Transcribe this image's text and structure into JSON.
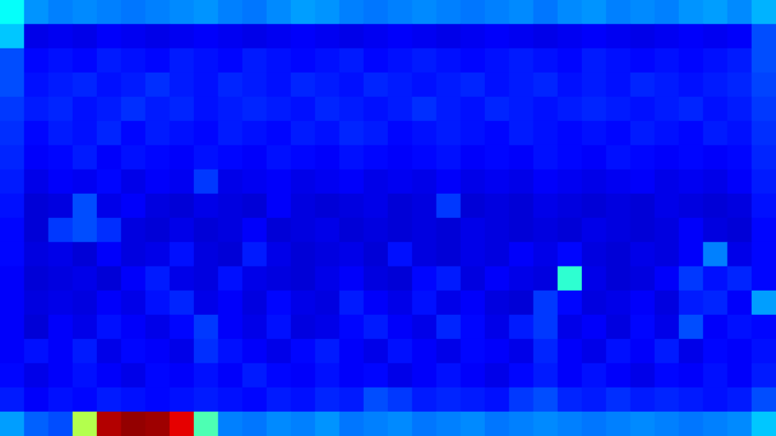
{
  "chart_data": {
    "type": "heatmap",
    "tick_labels": false,
    "grid": false,
    "color_range": [
      0,
      1
    ],
    "cells": [
      [
        0.38,
        0.27,
        0.25,
        0.26,
        0.25,
        0.24,
        0.25,
        0.26,
        0.27,
        0.25,
        0.24,
        0.26,
        0.28,
        0.27,
        0.25,
        0.24,
        0.25,
        0.26,
        0.25,
        0.24,
        0.25,
        0.26,
        0.24,
        0.26,
        0.27,
        0.25,
        0.26,
        0.25,
        0.27,
        0.28,
        0.26,
        0.3
      ],
      [
        0.32,
        0.1,
        0.11,
        0.1,
        0.12,
        0.11,
        0.1,
        0.11,
        0.12,
        0.11,
        0.1,
        0.11,
        0.12,
        0.11,
        0.1,
        0.11,
        0.12,
        0.11,
        0.1,
        0.11,
        0.12,
        0.11,
        0.1,
        0.11,
        0.12,
        0.11,
        0.1,
        0.11,
        0.12,
        0.11,
        0.12,
        0.2
      ],
      [
        0.2,
        0.13,
        0.14,
        0.13,
        0.15,
        0.14,
        0.13,
        0.15,
        0.14,
        0.13,
        0.15,
        0.14,
        0.13,
        0.14,
        0.15,
        0.13,
        0.14,
        0.15,
        0.14,
        0.13,
        0.14,
        0.15,
        0.14,
        0.13,
        0.15,
        0.14,
        0.13,
        0.14,
        0.13,
        0.14,
        0.15,
        0.2
      ],
      [
        0.2,
        0.14,
        0.15,
        0.16,
        0.14,
        0.15,
        0.17,
        0.15,
        0.14,
        0.16,
        0.15,
        0.14,
        0.16,
        0.15,
        0.14,
        0.16,
        0.15,
        0.14,
        0.15,
        0.16,
        0.14,
        0.15,
        0.16,
        0.14,
        0.15,
        0.14,
        0.16,
        0.15,
        0.14,
        0.15,
        0.16,
        0.19
      ],
      [
        0.18,
        0.15,
        0.16,
        0.14,
        0.15,
        0.17,
        0.15,
        0.16,
        0.14,
        0.15,
        0.16,
        0.15,
        0.14,
        0.16,
        0.15,
        0.14,
        0.15,
        0.17,
        0.15,
        0.14,
        0.16,
        0.15,
        0.14,
        0.15,
        0.16,
        0.15,
        0.14,
        0.15,
        0.16,
        0.14,
        0.15,
        0.18
      ],
      [
        0.17,
        0.13,
        0.15,
        0.14,
        0.16,
        0.13,
        0.15,
        0.14,
        0.13,
        0.15,
        0.14,
        0.13,
        0.15,
        0.14,
        0.16,
        0.15,
        0.13,
        0.14,
        0.15,
        0.14,
        0.13,
        0.15,
        0.14,
        0.13,
        0.14,
        0.13,
        0.15,
        0.14,
        0.13,
        0.15,
        0.14,
        0.17
      ],
      [
        0.16,
        0.12,
        0.13,
        0.15,
        0.12,
        0.14,
        0.13,
        0.12,
        0.14,
        0.13,
        0.12,
        0.14,
        0.13,
        0.12,
        0.14,
        0.13,
        0.12,
        0.13,
        0.14,
        0.12,
        0.13,
        0.12,
        0.14,
        0.13,
        0.12,
        0.14,
        0.13,
        0.12,
        0.13,
        0.12,
        0.13,
        0.16
      ],
      [
        0.15,
        0.1,
        0.12,
        0.11,
        0.13,
        0.1,
        0.12,
        0.11,
        0.18,
        0.1,
        0.11,
        0.12,
        0.1,
        0.11,
        0.12,
        0.1,
        0.11,
        0.1,
        0.12,
        0.1,
        0.11,
        0.1,
        0.12,
        0.11,
        0.1,
        0.11,
        0.12,
        0.1,
        0.11,
        0.1,
        0.12,
        0.15
      ],
      [
        0.14,
        0.08,
        0.09,
        0.2,
        0.1,
        0.12,
        0.09,
        0.08,
        0.1,
        0.09,
        0.08,
        0.12,
        0.09,
        0.08,
        0.09,
        0.1,
        0.08,
        0.09,
        0.18,
        0.08,
        0.09,
        0.08,
        0.1,
        0.09,
        0.08,
        0.09,
        0.08,
        0.1,
        0.09,
        0.08,
        0.09,
        0.14
      ],
      [
        0.13,
        0.08,
        0.18,
        0.2,
        0.17,
        0.09,
        0.08,
        0.1,
        0.08,
        0.09,
        0.12,
        0.08,
        0.09,
        0.1,
        0.08,
        0.09,
        0.08,
        0.09,
        0.08,
        0.1,
        0.09,
        0.08,
        0.09,
        0.08,
        0.1,
        0.09,
        0.08,
        0.09,
        0.12,
        0.09,
        0.08,
        0.13
      ],
      [
        0.13,
        0.09,
        0.1,
        0.08,
        0.12,
        0.09,
        0.1,
        0.14,
        0.09,
        0.08,
        0.15,
        0.1,
        0.08,
        0.09,
        0.1,
        0.08,
        0.14,
        0.09,
        0.08,
        0.1,
        0.09,
        0.12,
        0.1,
        0.13,
        0.09,
        0.08,
        0.1,
        0.09,
        0.12,
        0.25,
        0.1,
        0.13
      ],
      [
        0.12,
        0.08,
        0.09,
        0.1,
        0.08,
        0.12,
        0.15,
        0.1,
        0.09,
        0.14,
        0.1,
        0.09,
        0.08,
        0.1,
        0.12,
        0.09,
        0.08,
        0.13,
        0.15,
        0.09,
        0.12,
        0.1,
        0.09,
        0.42,
        0.1,
        0.08,
        0.09,
        0.12,
        0.18,
        0.14,
        0.16,
        0.13
      ],
      [
        0.12,
        0.09,
        0.1,
        0.09,
        0.12,
        0.1,
        0.14,
        0.16,
        0.1,
        0.12,
        0.09,
        0.13,
        0.1,
        0.09,
        0.15,
        0.12,
        0.1,
        0.14,
        0.1,
        0.12,
        0.09,
        0.08,
        0.18,
        0.13,
        0.09,
        0.1,
        0.12,
        0.09,
        0.15,
        0.16,
        0.12,
        0.28
      ],
      [
        0.12,
        0.08,
        0.12,
        0.1,
        0.14,
        0.12,
        0.1,
        0.13,
        0.18,
        0.12,
        0.1,
        0.14,
        0.09,
        0.1,
        0.13,
        0.15,
        0.12,
        0.1,
        0.16,
        0.13,
        0.1,
        0.15,
        0.18,
        0.1,
        0.12,
        0.09,
        0.13,
        0.1,
        0.2,
        0.12,
        0.14,
        0.13
      ],
      [
        0.12,
        0.14,
        0.12,
        0.15,
        0.1,
        0.13,
        0.12,
        0.1,
        0.17,
        0.14,
        0.12,
        0.1,
        0.13,
        0.15,
        0.12,
        0.1,
        0.14,
        0.12,
        0.1,
        0.13,
        0.12,
        0.1,
        0.16,
        0.12,
        0.1,
        0.14,
        0.12,
        0.15,
        0.1,
        0.13,
        0.12,
        0.14
      ],
      [
        0.13,
        0.1,
        0.12,
        0.14,
        0.12,
        0.1,
        0.13,
        0.12,
        0.14,
        0.12,
        0.15,
        0.13,
        0.12,
        0.14,
        0.12,
        0.13,
        0.1,
        0.12,
        0.14,
        0.12,
        0.1,
        0.13,
        0.15,
        0.12,
        0.14,
        0.12,
        0.1,
        0.13,
        0.12,
        0.14,
        0.12,
        0.15
      ],
      [
        0.15,
        0.12,
        0.14,
        0.13,
        0.15,
        0.14,
        0.13,
        0.14,
        0.15,
        0.14,
        0.13,
        0.15,
        0.14,
        0.16,
        0.15,
        0.2,
        0.18,
        0.15,
        0.16,
        0.15,
        0.14,
        0.18,
        0.2,
        0.16,
        0.15,
        0.17,
        0.15,
        0.16,
        0.15,
        0.14,
        0.15,
        0.2
      ],
      [
        0.28,
        0.22,
        0.2,
        0.55,
        0.95,
        0.98,
        0.97,
        0.9,
        0.45,
        0.25,
        0.24,
        0.26,
        0.25,
        0.27,
        0.24,
        0.25,
        0.26,
        0.24,
        0.25,
        0.26,
        0.24,
        0.25,
        0.26,
        0.25,
        0.24,
        0.25,
        0.26,
        0.25,
        0.24,
        0.25,
        0.26,
        0.32
      ]
    ]
  }
}
